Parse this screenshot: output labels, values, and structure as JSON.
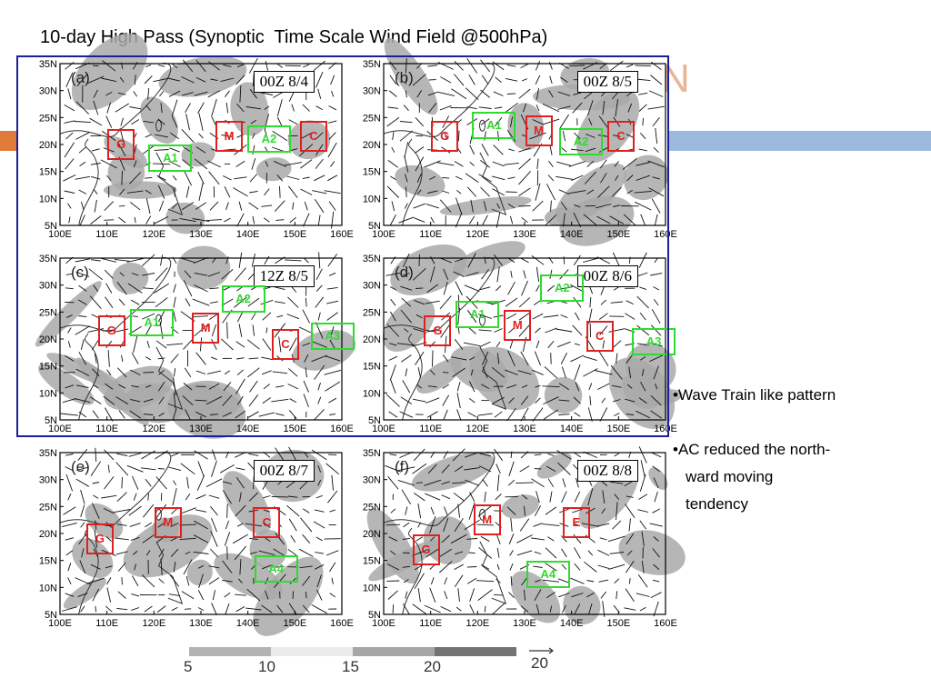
{
  "title": "10-day High Pass (Synoptic  Time Scale Wind Field @500hPa)",
  "ghost_letter": "N",
  "bullets": [
    {
      "lines": [
        "•Wave Train like pattern"
      ]
    },
    {
      "lines": [
        "•AC reduced the north-",
        "ward moving",
        "tendency"
      ]
    }
  ],
  "axes": {
    "lat_ticks": [
      "35N",
      "30N",
      "25N",
      "20N",
      "15N",
      "10N",
      "5N"
    ],
    "lon_ticks": [
      "100E",
      "110E",
      "120E",
      "130E",
      "140E",
      "150E",
      "160E"
    ]
  },
  "panels": [
    {
      "id": "a",
      "letter": "(a)",
      "time": "00Z 8/4",
      "labels": [
        {
          "text": "G",
          "color": "red",
          "lon": 113,
          "lat": 20
        },
        {
          "text": "A1",
          "color": "green",
          "lon": 123.5,
          "lat": 17.5
        },
        {
          "text": "M",
          "color": "red",
          "lon": 136,
          "lat": 21.5
        },
        {
          "text": "A2",
          "color": "green",
          "lon": 144.5,
          "lat": 21
        },
        {
          "text": "C",
          "color": "red",
          "lon": 154,
          "lat": 21.5
        }
      ]
    },
    {
      "id": "b",
      "letter": "(b)",
      "time": "00Z 8/5",
      "labels": [
        {
          "text": "G",
          "color": "red",
          "lon": 113,
          "lat": 21.5
        },
        {
          "text": "A1",
          "color": "green",
          "lon": 123.5,
          "lat": 23.5
        },
        {
          "text": "M",
          "color": "red",
          "lon": 133,
          "lat": 22.5
        },
        {
          "text": "A2",
          "color": "green",
          "lon": 142,
          "lat": 20.5
        },
        {
          "text": "C",
          "color": "red",
          "lon": 150.5,
          "lat": 21.5
        }
      ]
    },
    {
      "id": "c",
      "letter": "(c)",
      "time": "12Z 8/5",
      "labels": [
        {
          "text": "G",
          "color": "red",
          "lon": 111,
          "lat": 21.5
        },
        {
          "text": "A1",
          "color": "green",
          "lon": 119.5,
          "lat": 23
        },
        {
          "text": "M",
          "color": "red",
          "lon": 131,
          "lat": 22
        },
        {
          "text": "A2",
          "color": "green",
          "lon": 139,
          "lat": 27.5
        },
        {
          "text": "C",
          "color": "red",
          "lon": 148,
          "lat": 19
        },
        {
          "text": "A3",
          "color": "green",
          "lon": 158,
          "lat": 20.5
        }
      ]
    },
    {
      "id": "d",
      "letter": "(d)",
      "time": "00Z 8/6",
      "labels": [
        {
          "text": "G",
          "color": "red",
          "lon": 111.5,
          "lat": 21.5
        },
        {
          "text": "A1",
          "color": "green",
          "lon": 120,
          "lat": 24.5
        },
        {
          "text": "M",
          "color": "red",
          "lon": 128.5,
          "lat": 22.5
        },
        {
          "text": "A2",
          "color": "green",
          "lon": 138,
          "lat": 29.5
        },
        {
          "text": "C",
          "color": "red",
          "lon": 146,
          "lat": 20.5
        },
        {
          "text": "A3",
          "color": "green",
          "lon": 157.5,
          "lat": 19.5
        }
      ]
    },
    {
      "id": "e",
      "letter": "(e)",
      "time": "00Z 8/7",
      "labels": [
        {
          "text": "G",
          "color": "red",
          "lon": 108.5,
          "lat": 19
        },
        {
          "text": "M",
          "color": "red",
          "lon": 123,
          "lat": 22
        },
        {
          "text": "C",
          "color": "red",
          "lon": 144,
          "lat": 22
        },
        {
          "text": "A4",
          "color": "green",
          "lon": 146,
          "lat": 13.5
        }
      ]
    },
    {
      "id": "f",
      "letter": "(f)",
      "time": "00Z 8/8",
      "labels": [
        {
          "text": "G",
          "color": "red",
          "lon": 109,
          "lat": 17
        },
        {
          "text": "M",
          "color": "red",
          "lon": 122,
          "lat": 22.5
        },
        {
          "text": "E",
          "color": "red",
          "lon": 141,
          "lat": 22
        },
        {
          "text": "A4",
          "color": "green",
          "lon": 135,
          "lat": 12.5
        }
      ]
    }
  ],
  "legend": {
    "tick_labels": [
      "5",
      "10",
      "15",
      "20"
    ],
    "ref_vector": "20",
    "colors": [
      "#b3b3b3",
      "#ebebeb",
      "#a6a6a6",
      "#737373"
    ]
  },
  "colors": {
    "frame": "#1a1f9e",
    "accent_orange": "#e07b39",
    "accent_blue": "#9cb9dd",
    "label_red": "#e02020",
    "label_green": "#2ddc2d",
    "shading": "#a9a9a9"
  }
}
